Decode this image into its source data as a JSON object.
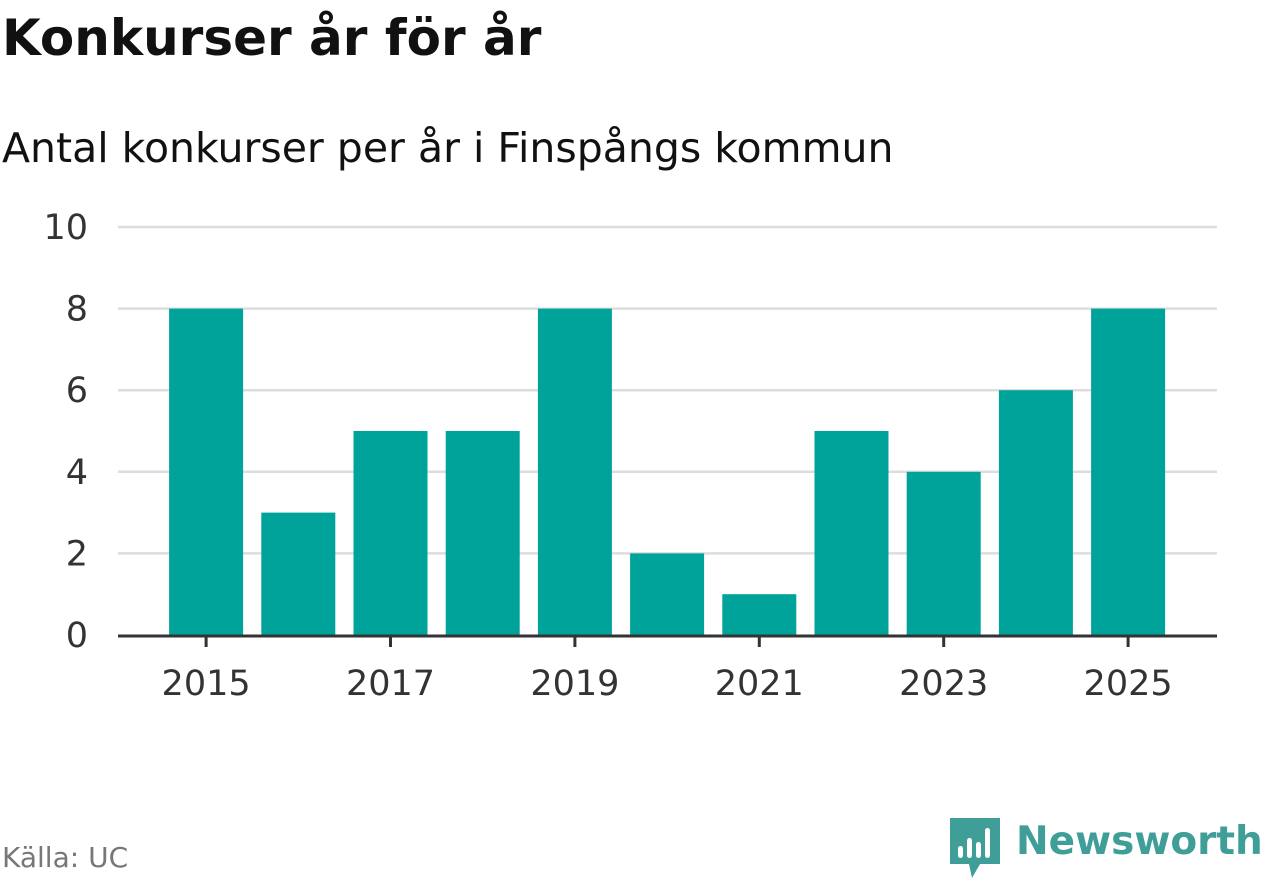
{
  "header": {
    "title": "Konkurser år för år",
    "subtitle": "Antal konkurser per år i Finspångs kommun"
  },
  "footer": {
    "source": "Källa: UC",
    "brand": "Newsworthy",
    "brand_icon": "newsworthy-logo-icon"
  },
  "colors": {
    "bar": "#00a39a",
    "grid": "#dddddd",
    "axis": "#333333",
    "brand": "#3f9e97"
  },
  "chart_data": {
    "type": "bar",
    "title": "Konkurser år för år",
    "subtitle": "Antal konkurser per år i Finspångs kommun",
    "categories": [
      "2015",
      "2016",
      "2017",
      "2018",
      "2019",
      "2020",
      "2021",
      "2022",
      "2023",
      "2024",
      "2025"
    ],
    "values": [
      8,
      3,
      5,
      5,
      8,
      2,
      1,
      5,
      4,
      6,
      8
    ],
    "x_tick_labels": [
      "2015",
      "2017",
      "2019",
      "2021",
      "2023",
      "2025"
    ],
    "y_ticks": [
      0,
      2,
      4,
      6,
      8,
      10
    ],
    "ylim": [
      0,
      10
    ],
    "xlabel": "",
    "ylabel": "",
    "grid": true,
    "legend": "none"
  }
}
